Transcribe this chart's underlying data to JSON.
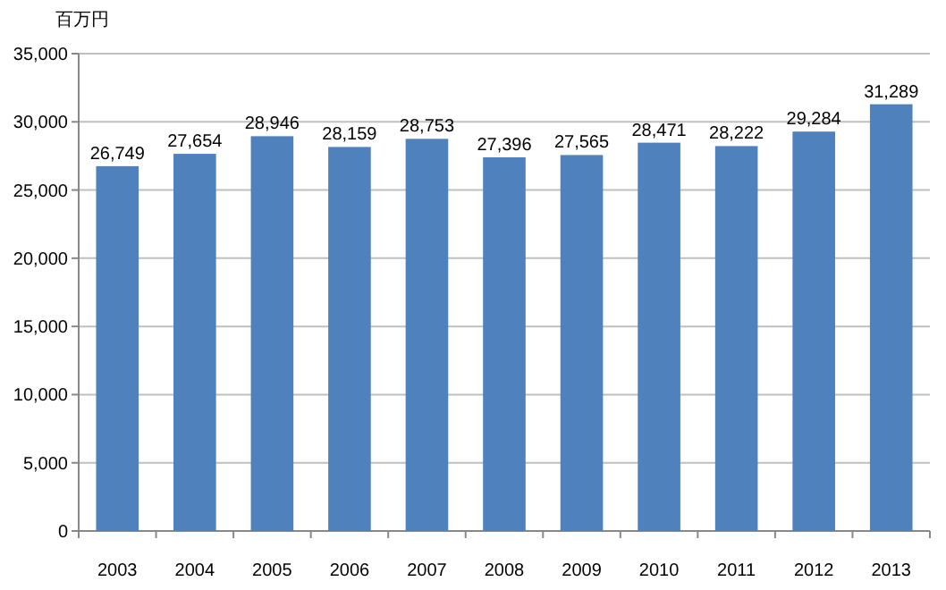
{
  "chart_data": {
    "type": "bar",
    "ylabel": "百万円",
    "categories": [
      "2003",
      "2004",
      "2005",
      "2006",
      "2007",
      "2008",
      "2009",
      "2010",
      "2011",
      "2012",
      "2013"
    ],
    "values": [
      26749,
      27654,
      28946,
      28159,
      28753,
      27396,
      27565,
      28471,
      28222,
      29284,
      31289
    ],
    "value_labels": [
      "26,749",
      "27,654",
      "28,946",
      "28,159",
      "28,753",
      "27,396",
      "27,565",
      "28,471",
      "28,222",
      "29,284",
      "31,289"
    ],
    "color": "#4f81bd",
    "ylim": [
      0,
      35000
    ],
    "yticks": [
      0,
      {
        "value": 5000,
        "label": "5,000"
      },
      {
        "value": 10000,
        "label": "10,000"
      },
      {
        "value": 15000,
        "label": "15,000"
      },
      {
        "value": 20000,
        "label": "20,000"
      },
      {
        "value": 25000,
        "label": "25,000"
      },
      {
        "value": 30000,
        "label": "30,000"
      },
      {
        "value": 35000,
        "label": "35,000"
      }
    ],
    "grid": "y"
  }
}
